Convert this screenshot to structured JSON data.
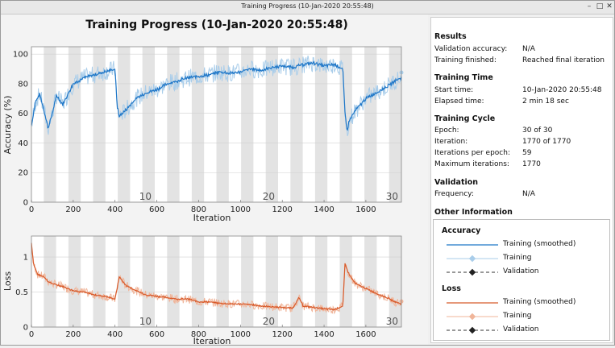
{
  "window": {
    "title": "Training Progress (10-Jan-2020 20:55:48)"
  },
  "main_title": "Training Progress (10-Jan-2020 20:55:48)",
  "accuracy_plot": {
    "ylabel": "Accuracy (%)",
    "xlabel": "Iteration",
    "yticks": [
      "0",
      "20",
      "40",
      "60",
      "80",
      "100"
    ],
    "xticks": [
      "0",
      "200",
      "400",
      "600",
      "800",
      "1000",
      "1200",
      "1400",
      "1600"
    ],
    "epoch_labels": [
      "10",
      "20",
      "30"
    ]
  },
  "loss_plot": {
    "ylabel": "Loss",
    "xlabel": "Iteration",
    "yticks": [
      "0",
      "0.5",
      "1"
    ],
    "xticks": [
      "0",
      "200",
      "400",
      "600",
      "800",
      "1000",
      "1200",
      "1400",
      "1600"
    ],
    "epoch_labels": [
      "10",
      "20",
      "30"
    ]
  },
  "results": {
    "heading": "Results",
    "validation_accuracy": {
      "label": "Validation accuracy:",
      "value": "N/A"
    },
    "training_finished": {
      "label": "Training finished:",
      "value": "Reached final iteration"
    }
  },
  "training_time": {
    "heading": "Training Time",
    "start_time": {
      "label": "Start time:",
      "value": "10-Jan-2020 20:55:48"
    },
    "elapsed_time": {
      "label": "Elapsed time:",
      "value": "2 min 18 sec"
    }
  },
  "training_cycle": {
    "heading": "Training Cycle",
    "epoch": {
      "label": "Epoch:",
      "value": "30 of 30"
    },
    "iteration": {
      "label": "Iteration:",
      "value": "1770 of 1770"
    },
    "iterations_per_epoch": {
      "label": "Iterations per epoch:",
      "value": "59"
    },
    "max_iterations": {
      "label": "Maximum iterations:",
      "value": "1770"
    }
  },
  "validation": {
    "heading": "Validation",
    "frequency": {
      "label": "Frequency:",
      "value": "N/A"
    }
  },
  "other_info": {
    "heading": "Other Information"
  },
  "legend": {
    "accuracy_heading": "Accuracy",
    "loss_heading": "Loss",
    "training_smoothed": "Training (smoothed)",
    "training": "Training",
    "validation": "Validation"
  },
  "colors": {
    "accuracy_smoothed": "#1f77c8",
    "accuracy_raw": "#a9cdea",
    "loss_smoothed": "#d85a2a",
    "loss_raw": "#f0b59a",
    "epoch_band": "#e3e3e3"
  },
  "chart_data": [
    {
      "type": "line",
      "xlim": [
        0,
        1770
      ],
      "ylim": [
        0,
        105
      ],
      "epochs": 30,
      "iterations_per_epoch": 59,
      "series": [
        {
          "name": "Training (smoothed)",
          "x": [
            0,
            20,
            40,
            60,
            80,
            100,
            120,
            150,
            200,
            250,
            300,
            350,
            400,
            410,
            420,
            450,
            500,
            550,
            600,
            650,
            700,
            750,
            800,
            850,
            900,
            950,
            1000,
            1050,
            1100,
            1150,
            1200,
            1250,
            1300,
            1350,
            1400,
            1450,
            1490,
            1500,
            1510,
            1520,
            1550,
            1600,
            1650,
            1700,
            1740,
            1770
          ],
          "y": [
            52,
            68,
            73,
            62,
            50,
            60,
            72,
            66,
            80,
            84,
            86,
            88,
            90,
            65,
            58,
            62,
            70,
            74,
            76,
            80,
            82,
            84,
            85,
            86,
            88,
            87,
            88,
            90,
            89,
            91,
            92,
            91,
            93,
            94,
            92,
            93,
            90,
            60,
            48,
            55,
            62,
            70,
            74,
            78,
            82,
            84
          ]
        }
      ]
    },
    {
      "type": "line",
      "xlim": [
        0,
        1770
      ],
      "ylim": [
        0,
        1.3
      ],
      "series": [
        {
          "name": "Training (smoothed)",
          "x": [
            0,
            10,
            30,
            60,
            80,
            100,
            150,
            200,
            250,
            300,
            350,
            400,
            410,
            420,
            450,
            500,
            550,
            600,
            650,
            700,
            750,
            800,
            850,
            900,
            950,
            1000,
            1050,
            1100,
            1150,
            1200,
            1250,
            1280,
            1300,
            1350,
            1400,
            1450,
            1490,
            1500,
            1520,
            1550,
            1600,
            1650,
            1700,
            1740,
            1770
          ],
          "y": [
            1.2,
            0.9,
            0.75,
            0.72,
            0.65,
            0.62,
            0.58,
            0.52,
            0.5,
            0.46,
            0.44,
            0.4,
            0.55,
            0.72,
            0.6,
            0.52,
            0.46,
            0.44,
            0.42,
            0.4,
            0.4,
            0.36,
            0.36,
            0.34,
            0.33,
            0.33,
            0.32,
            0.3,
            0.29,
            0.28,
            0.27,
            0.42,
            0.3,
            0.28,
            0.26,
            0.25,
            0.3,
            0.9,
            0.75,
            0.62,
            0.55,
            0.48,
            0.42,
            0.36,
            0.33
          ]
        }
      ]
    }
  ]
}
